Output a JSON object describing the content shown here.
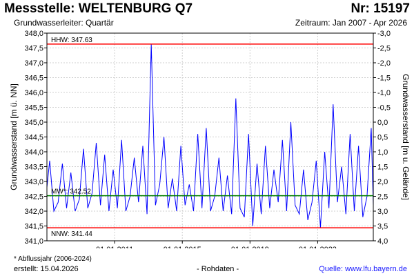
{
  "header": {
    "title": "Messstelle: WELTENBURG Q7",
    "number": "Nr: 15197",
    "aquifer": "Grundwasserleiter: Quartär",
    "period": "Zeitraum: Jan 2007 - Apr 2026"
  },
  "footer": {
    "footnote": "* Abflussjahr (2006-2024)",
    "created": "erstellt:  15.04.2026",
    "raw": "- Rohdaten -",
    "source": "Quelle:  www.lfu.bayern.de"
  },
  "chart_data": {
    "type": "line",
    "ylabel": "Grundwasserstand [m ü. NN]",
    "ylabel_right": "Grundwasserstand [m u. Gelände]",
    "ylim": [
      341.0,
      348.0
    ],
    "ylim_right": [
      4.0,
      -3.0
    ],
    "xlim": [
      "2007-01-01",
      "2026-04-15"
    ],
    "y_ticks": [
      "341,0",
      "341,5",
      "342,0",
      "342,5",
      "343,0",
      "343,5",
      "344,0",
      "344,5",
      "345,0",
      "345,5",
      "346,0",
      "346,5",
      "347,0",
      "347,5",
      "348,0"
    ],
    "y_ticks_right": [
      "4,0",
      "3,5",
      "3,0",
      "2,5",
      "2,0",
      "1,5",
      "1,0",
      "0,5",
      "0,0",
      "-0,5",
      "-1,0",
      "-1,5",
      "-2,0",
      "-2,5",
      "-3,0"
    ],
    "x_ticks": [
      "01.01.2011",
      "01.01.2015",
      "01.01.2019",
      "01.01.2023"
    ],
    "x_tick_dates": [
      "2011-01-01",
      "2015-01-01",
      "2019-01-01",
      "2023-01-01"
    ],
    "reference_lines": [
      {
        "label": "HHW: 347.63",
        "value": 347.63,
        "color": "#ff0000"
      },
      {
        "label": "MW*: 342.52",
        "value": 342.52,
        "color": "#008000"
      },
      {
        "label": "NNW: 341.44",
        "value": 341.44,
        "color": "#ff0000"
      }
    ],
    "series": [
      {
        "color": "#0000ff",
        "x": [
          "2007-01-01",
          "2007-03-01",
          "2007-06-01",
          "2007-09-01",
          "2007-12-01",
          "2008-03-01",
          "2008-06-01",
          "2008-09-01",
          "2008-12-01",
          "2009-03-01",
          "2009-06-01",
          "2009-09-01",
          "2009-12-01",
          "2010-03-01",
          "2010-06-01",
          "2010-09-01",
          "2010-12-01",
          "2011-03-01",
          "2011-06-01",
          "2011-09-01",
          "2011-12-01",
          "2012-03-01",
          "2012-06-01",
          "2012-09-01",
          "2012-12-01",
          "2013-03-01",
          "2013-06-01",
          "2013-09-01",
          "2013-12-01",
          "2014-03-01",
          "2014-06-01",
          "2014-09-01",
          "2014-12-01",
          "2015-03-01",
          "2015-06-01",
          "2015-09-01",
          "2015-12-01",
          "2016-03-01",
          "2016-06-01",
          "2016-09-01",
          "2016-12-01",
          "2017-03-01",
          "2017-06-01",
          "2017-09-01",
          "2017-12-01",
          "2018-03-01",
          "2018-06-01",
          "2018-09-01",
          "2018-12-01",
          "2019-03-01",
          "2019-06-01",
          "2019-09-01",
          "2019-12-01",
          "2020-03-01",
          "2020-06-01",
          "2020-09-01",
          "2020-12-01",
          "2021-03-01",
          "2021-06-01",
          "2021-09-01",
          "2021-12-01",
          "2022-03-01",
          "2022-06-01",
          "2022-09-01",
          "2022-12-01",
          "2023-03-01",
          "2023-06-01",
          "2023-09-01",
          "2023-12-01",
          "2024-03-01",
          "2024-06-01",
          "2024-09-01",
          "2024-12-01",
          "2025-03-01",
          "2025-06-01",
          "2025-09-01",
          "2025-12-01",
          "2026-03-01",
          "2026-04-15"
        ],
        "y": [
          342.8,
          343.7,
          342.0,
          342.3,
          343.6,
          342.1,
          343.3,
          342.0,
          342.4,
          344.1,
          342.1,
          342.6,
          344.3,
          342.2,
          343.9,
          342.0,
          343.4,
          342.1,
          344.4,
          342.0,
          342.5,
          343.8,
          342.3,
          344.2,
          341.9,
          347.63,
          342.2,
          342.9,
          344.5,
          342.1,
          343.1,
          342.0,
          344.2,
          342.2,
          342.9,
          342.0,
          344.6,
          342.1,
          344.8,
          342.0,
          342.5,
          343.8,
          342.0,
          343.2,
          341.9,
          345.8,
          342.1,
          341.8,
          344.6,
          341.5,
          343.6,
          341.9,
          344.2,
          342.1,
          343.4,
          342.3,
          344.4,
          342.0,
          345.0,
          342.2,
          341.9,
          343.4,
          341.7,
          342.3,
          343.7,
          341.44,
          344.0,
          342.1,
          345.6,
          342.3,
          343.5,
          341.9,
          344.6,
          342.0,
          344.2,
          341.8,
          342.5,
          344.8,
          342.2
        ]
      }
    ]
  }
}
